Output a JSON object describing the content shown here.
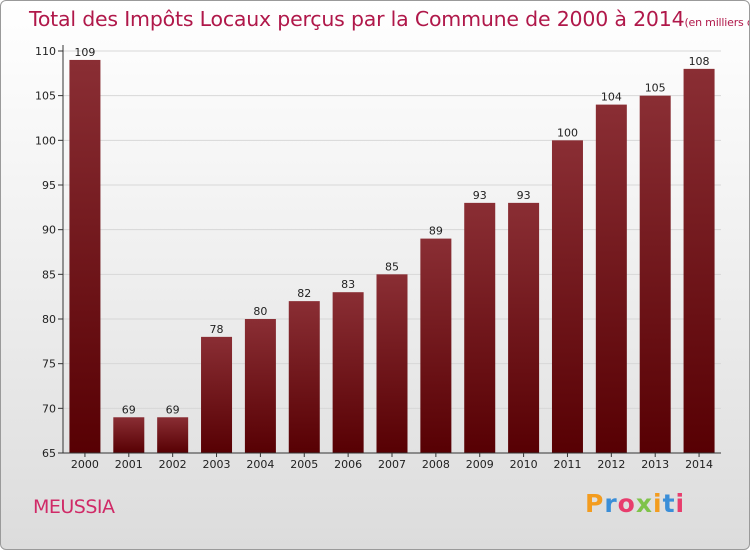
{
  "title": "Total des Impôts Locaux perçus par la Commune de 2000 à 2014",
  "unit": "(en milliers d'€)",
  "commune": "MEUSSIA",
  "logo": {
    "letters": [
      "P",
      "r",
      "o",
      "x",
      "i",
      "t",
      "i"
    ],
    "colors": [
      "#f39c1f",
      "#3a8ed8",
      "#e83d6d",
      "#7fc34a",
      "#f39c1f",
      "#3a8ed8",
      "#e83d6d"
    ]
  },
  "colors": {
    "bar_top": "#8a2e34",
    "bar_bottom": "#570003",
    "grid": "#d7d7d7"
  },
  "chart_data": {
    "type": "bar",
    "categories": [
      "2000",
      "2001",
      "2002",
      "2003",
      "2004",
      "2005",
      "2006",
      "2007",
      "2008",
      "2009",
      "2010",
      "2011",
      "2012",
      "2013",
      "2014"
    ],
    "values": [
      109,
      69,
      69,
      78,
      80,
      82,
      83,
      85,
      89,
      93,
      93,
      100,
      104,
      105,
      108
    ],
    "ylim": [
      65,
      110
    ],
    "yticks": [
      65,
      70,
      75,
      80,
      85,
      90,
      95,
      100,
      105,
      110
    ],
    "grid": true,
    "legend": "none"
  }
}
